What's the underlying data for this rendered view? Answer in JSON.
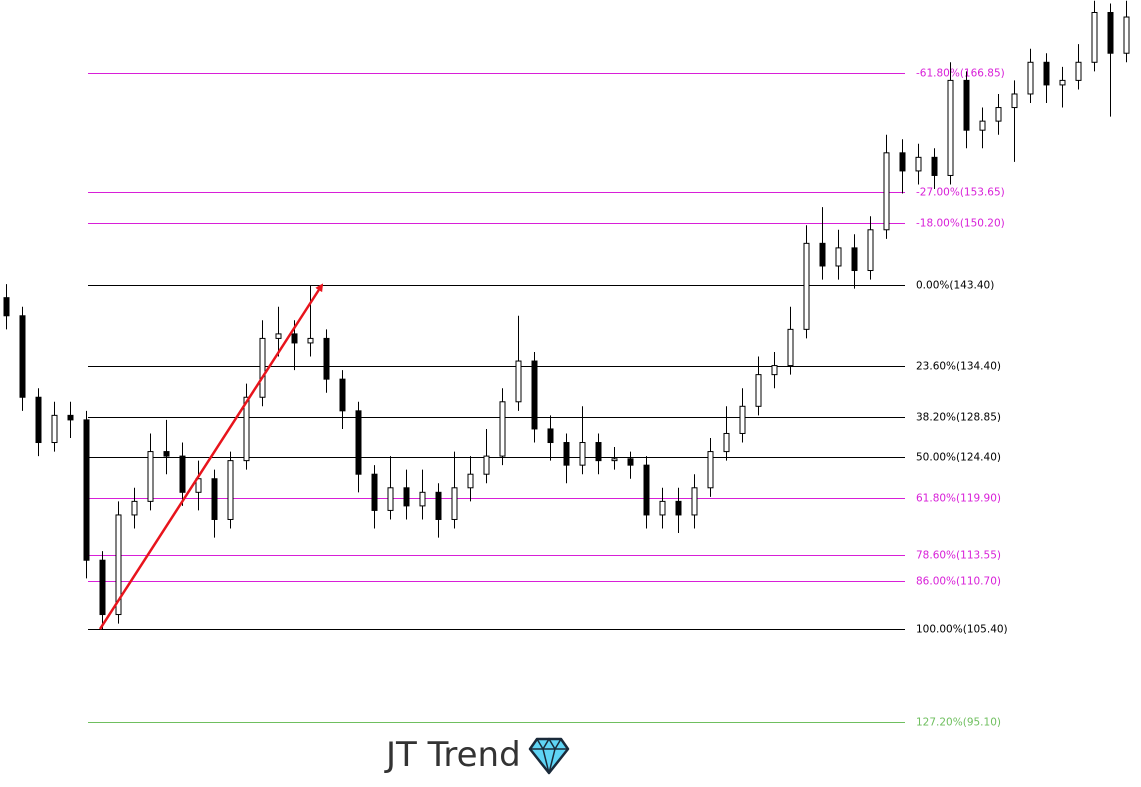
{
  "chart_data": {
    "type": "candlestick",
    "ylim": [
      87.95,
      174.88
    ],
    "watermark": "JT Trend",
    "up_color": "#ffffff",
    "down_color": "#000000",
    "wick_color": "#000000",
    "arrow_color": "#e8141c",
    "open": [
      142,
      140,
      131,
      126,
      129,
      128.5,
      113,
      107,
      118,
      119.5,
      125,
      124.5,
      120.5,
      122,
      117.5,
      124,
      131,
      137.5,
      138,
      137,
      137.5,
      133,
      129.5,
      122.5,
      118.5,
      121,
      119,
      120.5,
      117.5,
      121,
      122.5,
      124.5,
      130.5,
      135,
      127.5,
      126,
      123.5,
      126,
      124,
      124.2,
      123.5,
      118,
      119.5,
      118,
      121,
      125,
      127,
      130,
      133.5,
      134.5,
      138.5,
      148,
      145.5,
      147.5,
      145,
      149.5,
      158,
      156,
      157.5,
      155.5,
      166,
      160.5,
      161.5,
      163,
      164.5,
      168,
      165.5,
      166,
      168,
      173.5,
      169
    ],
    "high": [
      143.5,
      141,
      132,
      130.5,
      130.5,
      129.5,
      114,
      119.5,
      121,
      127,
      128.5,
      126,
      124,
      123,
      125,
      132.5,
      139.5,
      141,
      139.5,
      143.4,
      138.5,
      134,
      130.5,
      123.5,
      124.5,
      123,
      123,
      121.5,
      125,
      124.5,
      127.5,
      132,
      140,
      136,
      129,
      127,
      130,
      127,
      125.5,
      125,
      124.5,
      121,
      121,
      122.5,
      126.5,
      130,
      132,
      135.5,
      136,
      141,
      150,
      152,
      149.5,
      149,
      151,
      160,
      159.5,
      159,
      158.5,
      168,
      167,
      163,
      164.5,
      166,
      169.5,
      169,
      167.5,
      170,
      174.8,
      174.5,
      174.8
    ],
    "low": [
      138.5,
      129.5,
      124.5,
      125,
      126.5,
      111,
      105.4,
      106,
      116.5,
      118.5,
      122.5,
      119,
      118.5,
      115.5,
      116.5,
      123,
      130,
      135.5,
      134,
      135.5,
      131.5,
      127.5,
      120.5,
      116.5,
      117.5,
      117.5,
      117.5,
      115.5,
      116.5,
      119.5,
      121.5,
      123.5,
      129.5,
      126,
      124,
      121.5,
      122.5,
      122.5,
      123,
      122,
      116.5,
      116.5,
      116,
      116.5,
      120,
      124,
      126,
      129,
      132,
      133.5,
      137.5,
      144,
      144,
      143,
      144,
      148.5,
      153.5,
      154.5,
      154,
      154.5,
      158.5,
      158.5,
      160,
      157,
      163.5,
      163.5,
      163,
      165,
      167,
      162,
      168
    ],
    "close": [
      140,
      131,
      126,
      129,
      128.5,
      113,
      107,
      118,
      119.5,
      125,
      124.5,
      120.5,
      122,
      117.5,
      124,
      131,
      137.5,
      138,
      137,
      137.5,
      133,
      129.5,
      122.5,
      118.5,
      121,
      119,
      120.5,
      117.5,
      121,
      122.5,
      124.5,
      130.5,
      135,
      127.5,
      126,
      123.5,
      126,
      124,
      124.2,
      123.5,
      118,
      119.5,
      118,
      121,
      125,
      127,
      130,
      133.5,
      134.5,
      138.5,
      148,
      145.5,
      147.5,
      145,
      149.5,
      158,
      156,
      157.5,
      155.5,
      166,
      160.5,
      161.5,
      163,
      164.5,
      168,
      165.5,
      166,
      168,
      173.5,
      169,
      173
    ],
    "fib_levels": [
      {
        "label": "-61.80%(166.85)",
        "value": 166.85,
        "color": "#d81fd8"
      },
      {
        "label": "-27.00%(153.65)",
        "value": 153.65,
        "color": "#d81fd8"
      },
      {
        "label": "-18.00%(150.20)",
        "value": 150.2,
        "color": "#d81fd8"
      },
      {
        "label": "0.00%(143.40)",
        "value": 143.4,
        "color": "#000000"
      },
      {
        "label": "23.60%(134.40)",
        "value": 134.4,
        "color": "#000000"
      },
      {
        "label": "38.20%(128.85)",
        "value": 128.85,
        "color": "#000000"
      },
      {
        "label": "50.00%(124.40)",
        "value": 124.4,
        "color": "#000000"
      },
      {
        "label": "61.80%(119.90)",
        "value": 119.9,
        "color": "#d81fd8"
      },
      {
        "label": "78.60%(113.55)",
        "value": 113.55,
        "color": "#d81fd8"
      },
      {
        "label": "86.00%(110.70)",
        "value": 110.7,
        "color": "#d81fd8"
      },
      {
        "label": "100.00%(105.40)",
        "value": 105.4,
        "color": "#000000"
      },
      {
        "label": "127.20%(95.10)",
        "value": 95.1,
        "color": "#6fbf5f"
      }
    ]
  }
}
